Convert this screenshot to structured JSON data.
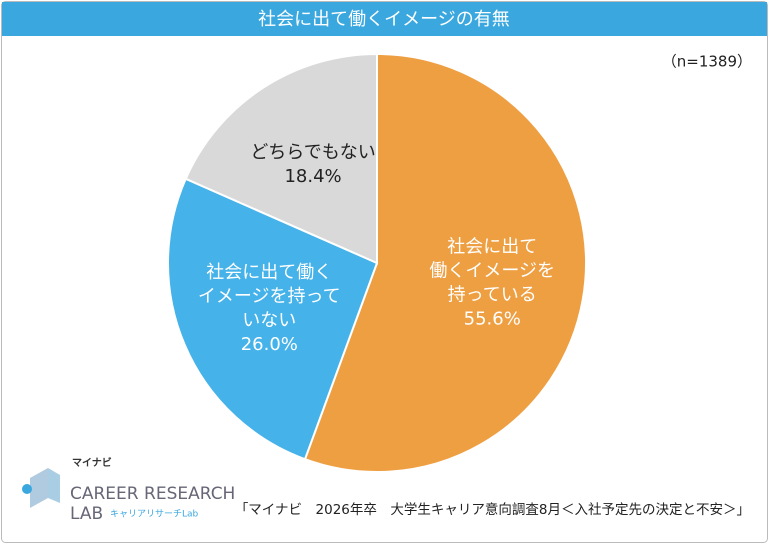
{
  "chart_data": {
    "type": "pie",
    "title": "社会に出て働くイメージの有無",
    "note": "（n=1389）",
    "categories": [
      "社会に出て\n働くイメージを\n持っている",
      "社会に出て働く\nイメージを持って\nいない",
      "どちらでもない"
    ],
    "values": [
      55.6,
      26.0,
      18.4
    ],
    "value_labels": [
      "55.6%",
      "26.0%",
      "18.4%"
    ],
    "colors": [
      "#EE9F42",
      "#45B2E9",
      "#D9D9D9"
    ],
    "source": "「マイナビ　2026年卒　大学生キャリア意向調査8月＜入社予定先の決定と不安＞」"
  },
  "logo": {
    "brand": "マイナビ",
    "line1": "CAREER RESEARCH",
    "line2": "LAB",
    "sub": "キャリアリサーチLab"
  }
}
